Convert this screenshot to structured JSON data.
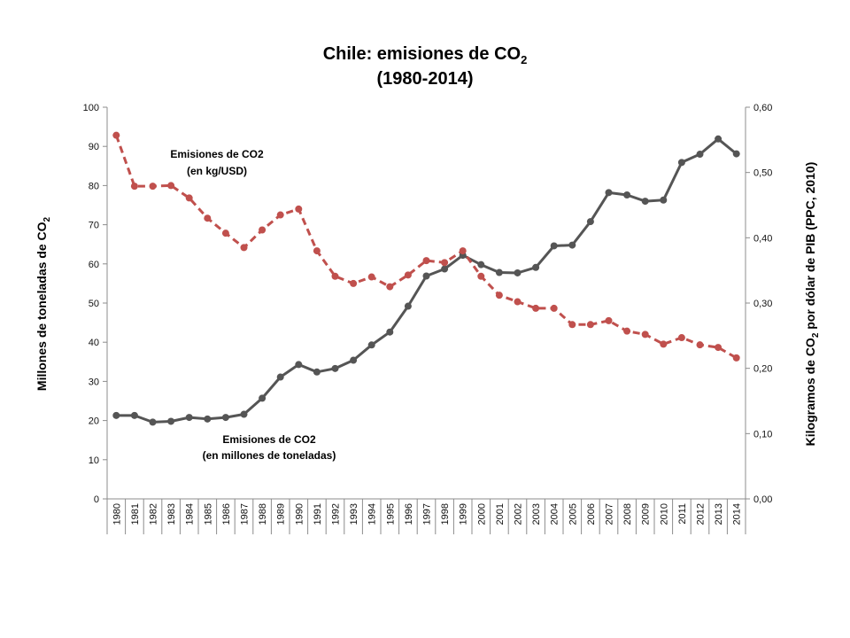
{
  "chart_data": {
    "type": "line",
    "title_main": "Chile: emisiones de CO",
    "title_sub_index": "2",
    "title_years": "(1980-2014)",
    "x": [
      "1980",
      "1981",
      "1982",
      "1983",
      "1984",
      "1985",
      "1986",
      "1987",
      "1988",
      "1989",
      "1990",
      "1991",
      "1992",
      "1993",
      "1994",
      "1995",
      "1996",
      "1997",
      "1998",
      "1999",
      "2000",
      "2001",
      "2002",
      "2003",
      "2004",
      "2005",
      "2006",
      "2007",
      "2008",
      "2009",
      "2010",
      "2011",
      "2012",
      "2013",
      "2014"
    ],
    "ylabel_left": "Millones de toneladas de CO",
    "ylabel_left_sub": "2",
    "ylabel_right_pre": "Kilogramos de CO",
    "ylabel_right_sub": "2",
    "ylabel_right_post": " por dólar de PIB (PPC, 2010)",
    "ylim_left": [
      0,
      100
    ],
    "ylim_right": [
      0,
      0.6
    ],
    "left_ticks": [
      "0",
      "10",
      "20",
      "30",
      "40",
      "50",
      "60",
      "70",
      "80",
      "90",
      "100"
    ],
    "right_ticks": [
      "0,00",
      "0,10",
      "0,20",
      "0,30",
      "0,40",
      "0,50",
      "0,60"
    ],
    "grid": false,
    "series": [
      {
        "axis": "left",
        "color": "#555555",
        "style": "solid",
        "annotation": [
          "Emisiones de CO2",
          "(en millones de toneladas)"
        ],
        "values": [
          21.3,
          21.3,
          19.6,
          19.8,
          20.8,
          20.4,
          20.8,
          21.6,
          25.7,
          31.1,
          34.3,
          32.4,
          33.3,
          35.4,
          39.3,
          42.6,
          49.2,
          56.9,
          58.7,
          62.2,
          59.8,
          57.8,
          57.7,
          59.1,
          64.6,
          64.8,
          70.8,
          78.2,
          77.6,
          76.0,
          76.3,
          85.9,
          88.0,
          91.9,
          88.1
        ]
      },
      {
        "axis": "right",
        "color": "#c0504d",
        "style": "dashed",
        "annotation": [
          "Emisiones de CO2",
          "(en kg/USD)"
        ],
        "values": [
          0.557,
          0.479,
          0.479,
          0.48,
          0.461,
          0.43,
          0.407,
          0.385,
          0.412,
          0.435,
          0.444,
          0.38,
          0.341,
          0.33,
          0.34,
          0.325,
          0.343,
          0.365,
          0.362,
          0.38,
          0.341,
          0.312,
          0.302,
          0.292,
          0.292,
          0.267,
          0.267,
          0.273,
          0.257,
          0.252,
          0.237,
          0.247,
          0.236,
          0.232,
          0.216
        ]
      }
    ]
  }
}
